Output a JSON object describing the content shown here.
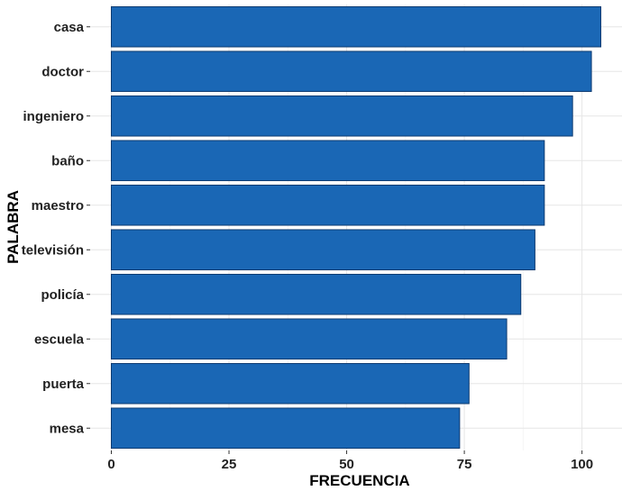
{
  "chart_data": {
    "type": "bar",
    "orientation": "horizontal",
    "categories": [
      "casa",
      "doctor",
      "ingeniero",
      "baño",
      "maestro",
      "televisión",
      "policía",
      "escuela",
      "puerta",
      "mesa"
    ],
    "values": [
      104,
      102,
      98,
      92,
      92,
      90,
      87,
      84,
      76,
      74
    ],
    "xlabel": "FRECUENCIA",
    "ylabel": "PALABRA",
    "xlim": [
      -4.5,
      108.5
    ],
    "xticks": [
      0,
      25,
      50,
      75,
      100
    ],
    "xtick_labels": [
      "0",
      "25",
      "50",
      "75",
      "100"
    ],
    "grid": true,
    "bar_color": "#1a67b5",
    "bar_edge_color": "#0d3a70"
  }
}
